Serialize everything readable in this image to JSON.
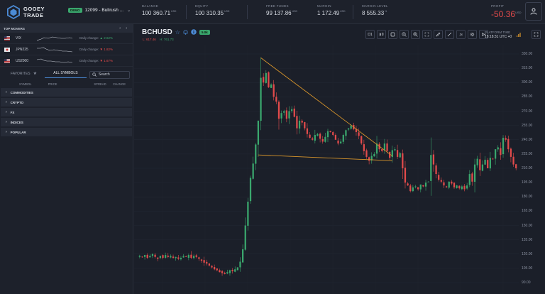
{
  "brand": {
    "line1": "GOOEY",
    "line2": "TRADE"
  },
  "account": {
    "badge": "DEMO",
    "name": "12099 - Bullrush ..."
  },
  "stats": [
    {
      "label": "BALANCE",
      "value": "100 360.71",
      "unit": "USD"
    },
    {
      "label": "EQUITY",
      "value": "100 310.35",
      "unit": "USD"
    },
    {
      "label": "FREE FUNDS",
      "value": "99 137.86",
      "unit": "USD"
    },
    {
      "label": "MARGIN",
      "value": "1 172.49",
      "unit": "USD"
    },
    {
      "label": "MARGIN LEVEL",
      "value": "8 555.33",
      "unit": "%"
    }
  ],
  "profit": {
    "label": "PROFIT",
    "value": "-50.36",
    "unit": "USD"
  },
  "top_movers": {
    "title": "TOP MOVERS",
    "items": [
      {
        "symbol": "VIX",
        "change_label": "Daily change:",
        "change": "2.62%",
        "direction": "up"
      },
      {
        "symbol": "JPN225",
        "change_label": "Daily change:",
        "change": "1.82%",
        "direction": "down"
      },
      {
        "symbol": "US2000",
        "change_label": "Daily change:",
        "change": "1.67%",
        "direction": "down"
      }
    ]
  },
  "symbols_panel": {
    "tab_favorites": "FAVORITES",
    "tab_all": "ALL SYMBOLS",
    "search_placeholder": "Search",
    "columns": [
      "SYMBOL",
      "PRICE",
      "SPREAD",
      "CHANGE"
    ],
    "categories": [
      "COMMODITIES",
      "CRYPTO",
      "FX",
      "INDICES",
      "POPULAR"
    ]
  },
  "chart": {
    "symbol": "BCHUSD",
    "badge": "5.0k",
    "low_label": "L:",
    "low": "617.46",
    "high_label": "H:",
    "high": "761.73",
    "timeframe": "D1",
    "platform_time_label": "PLATFORM TIME",
    "platform_time": "18:18:31 UTC +0",
    "colors": {
      "up": "#3aa76d",
      "down": "#e24b4b",
      "trendline": "#d9962b"
    }
  },
  "chart_data": {
    "type": "candlestick",
    "y_ticks": [
      330,
      315,
      300,
      285,
      270,
      255,
      240,
      225,
      210,
      195,
      180,
      165,
      150,
      135,
      120,
      105,
      90
    ],
    "ylim": [
      85,
      335
    ],
    "series_close": [
      118,
      117,
      119,
      116,
      118,
      120,
      117,
      115,
      118,
      116,
      119,
      117,
      118,
      116,
      117,
      115,
      116,
      118,
      117,
      119,
      116,
      118,
      117,
      115,
      113,
      111,
      110,
      108,
      106,
      104,
      103,
      101,
      100,
      99,
      101,
      103,
      102,
      104,
      106,
      112,
      125,
      150,
      175,
      200,
      215,
      235,
      260,
      305,
      300,
      310,
      295,
      298,
      285,
      280,
      262,
      268,
      270,
      262,
      270,
      272,
      264,
      252,
      260,
      258,
      252,
      246,
      242,
      240,
      245,
      246,
      241,
      238,
      243,
      249,
      248,
      245,
      240,
      236,
      238,
      245,
      250,
      252,
      255,
      251,
      248,
      244,
      236,
      228,
      222,
      218,
      223,
      225,
      236,
      230,
      228,
      236,
      228,
      221,
      229,
      230,
      222,
      226,
      210,
      195,
      192,
      186,
      190,
      191,
      188,
      193,
      191,
      195,
      196,
      224,
      214,
      204,
      198,
      196,
      192,
      190,
      196,
      194,
      190,
      192,
      189,
      191,
      188,
      192,
      204,
      196,
      214,
      220,
      208,
      214,
      219,
      210,
      221,
      220,
      230,
      232,
      224,
      242,
      240,
      230,
      222,
      214,
      210
    ]
  },
  "trendlines": [
    {
      "from": {
        "i": 47,
        "v": 326
      },
      "to": {
        "i": 98,
        "v": 223
      }
    },
    {
      "from": {
        "i": 46,
        "v": 224
      },
      "to": {
        "i": 98,
        "v": 218
      }
    }
  ]
}
